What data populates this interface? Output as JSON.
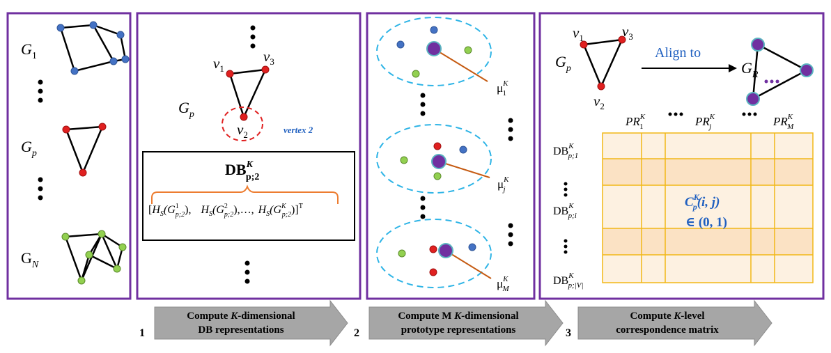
{
  "panel1": {
    "labels": {
      "g1": "G",
      "g1_sub": "1",
      "gp": "G",
      "gp_sub": "p",
      "gn": "G",
      "gn_sub": "N"
    }
  },
  "panel2": {
    "gp": "G",
    "gp_sub": "p",
    "v1": "v",
    "v1_sub": "1",
    "v3": "v",
    "v3_sub": "3",
    "v2": "v",
    "v2_sub": "2",
    "vertex_label": "vertex 2",
    "db_base": "DB",
    "db_sup": "K",
    "db_sub": "p;2",
    "formula": {
      "open": "[",
      "h1": "H",
      "h1_sub": "S",
      "h1_arg_open": "(G",
      "h1_arg_sup": "1",
      "h1_arg_sub": "p;2",
      "h1_close": "),",
      "h2": "H",
      "h2_sub": "S",
      "h2_arg_open": "(G",
      "h2_arg_sup": "2",
      "h2_arg_sub": "p;2",
      "h2_close": "),…,",
      "h3": "H",
      "h3_sub": "S",
      "h3_arg_open": "(G",
      "h3_arg_sup": "K",
      "h3_arg_sub": "p;2",
      "h3_close": ")]",
      "transpose": "T"
    }
  },
  "panel3": {
    "mu1": "μ",
    "mu1_sup": "K",
    "mu1_sub": "1",
    "muj": "μ",
    "muj_sup": "K",
    "muj_sub": "j",
    "mum": "μ",
    "mum_sup": "K",
    "mum_sub": "M"
  },
  "panel4": {
    "gp": "G",
    "gp_sub": "p",
    "v1": "v",
    "v1_sub": "1",
    "v3": "v",
    "v3_sub": "3",
    "v2": "v",
    "v2_sub": "2",
    "align": "Align to",
    "gr": "G",
    "gr_sub": "R",
    "pr1": "PR",
    "pr1_sup": "K",
    "pr1_sub": "1",
    "prj": "PR",
    "prj_sup": "K",
    "prj_sub": "j",
    "prm": "PR",
    "prm_sup": "K",
    "prm_sub": "M",
    "db1": "DB",
    "db1_sup": "K",
    "db1_sub": "p;1",
    "dbi": "DB",
    "dbi_sup": "K",
    "dbi_sub": "p;i",
    "dbv": "DB",
    "dbv_sup": "K",
    "dbv_sub": "p;|V|",
    "cell": "C",
    "cell_sup": "K",
    "cell_sub": "p",
    "cell_args": "(i, j)",
    "range": "∈ (0, 1)"
  },
  "steps": [
    {
      "num": "1",
      "line1_pre": "Compute ",
      "line1_it": "K",
      "line1_post": "-dimensional",
      "line2": "DB representations"
    },
    {
      "num": "2",
      "line1_pre": "Compute M ",
      "line1_it": "K",
      "line1_post": "-dimensional",
      "line2": "prototype representations"
    },
    {
      "num": "3",
      "line1_pre": "Compute ",
      "line1_it": "K",
      "line1_post": "-level",
      "line2": "correspondence matrix"
    }
  ],
  "colors": {
    "panel_border": "#7030a0",
    "node_blue": "#4472c4",
    "node_red": "#e02020",
    "node_green": "#92d050",
    "prototype": "#7030a0",
    "ellipse": "#2eb4e6",
    "vertex_ellipse": "#e02020",
    "vertex_text": "#2060c0",
    "bracket": "#ed7d31",
    "mu_line": "#c55a11",
    "grid_line": "#f2b817",
    "grid_fill_light": "#fdf1e1",
    "grid_fill_dark": "#fbe2c4",
    "arrow_fill": "#a6a6a6",
    "matrix_text": "#2060c0",
    "align_text": "#2060c0"
  }
}
